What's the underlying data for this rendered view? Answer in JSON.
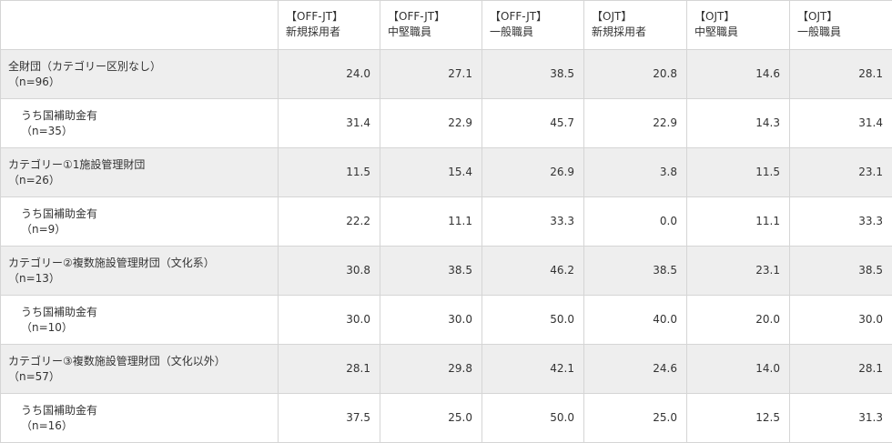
{
  "header": {
    "columns": [
      {
        "line1": "【OFF-JT】",
        "line2": "新規採用者"
      },
      {
        "line1": "【OFF-JT】",
        "line2": "中堅職員"
      },
      {
        "line1": "【OFF-JT】",
        "line2": "一般職員"
      },
      {
        "line1": "【OJT】",
        "line2": "新規採用者"
      },
      {
        "line1": "【OJT】",
        "line2": "中堅職員"
      },
      {
        "line1": "【OJT】",
        "line2": "一般職員"
      }
    ]
  },
  "rows": [
    {
      "label": "全財団（カテゴリー区別なし）",
      "n": "（n=96）",
      "values": [
        "24.0",
        "27.1",
        "38.5",
        "20.8",
        "14.6",
        "28.1"
      ]
    },
    {
      "label": "うち国補助金有",
      "n": "（n=35）",
      "values": [
        "31.4",
        "22.9",
        "45.7",
        "22.9",
        "14.3",
        "31.4"
      ]
    },
    {
      "label": "カテゴリー①1施設管理財団",
      "n": "（n=26）",
      "values": [
        "11.5",
        "15.4",
        "26.9",
        "3.8",
        "11.5",
        "23.1"
      ]
    },
    {
      "label": "うち国補助金有",
      "n": "（n=9）",
      "values": [
        "22.2",
        "11.1",
        "33.3",
        "0.0",
        "11.1",
        "33.3"
      ]
    },
    {
      "label": "カテゴリー②複数施設管理財団（文化系）",
      "n": "（n=13）",
      "values": [
        "30.8",
        "38.5",
        "46.2",
        "38.5",
        "23.1",
        "38.5"
      ]
    },
    {
      "label": "うち国補助金有",
      "n": "（n=10）",
      "values": [
        "30.0",
        "30.0",
        "50.0",
        "40.0",
        "20.0",
        "30.0"
      ]
    },
    {
      "label": "カテゴリー③複数施設管理財団（文化以外）",
      "n": "（n=57）",
      "values": [
        "28.1",
        "29.8",
        "42.1",
        "24.6",
        "14.0",
        "28.1"
      ]
    },
    {
      "label": "うち国補助金有",
      "n": "（n=16）",
      "values": [
        "37.5",
        "25.0",
        "50.0",
        "25.0",
        "12.5",
        "31.3"
      ]
    }
  ]
}
